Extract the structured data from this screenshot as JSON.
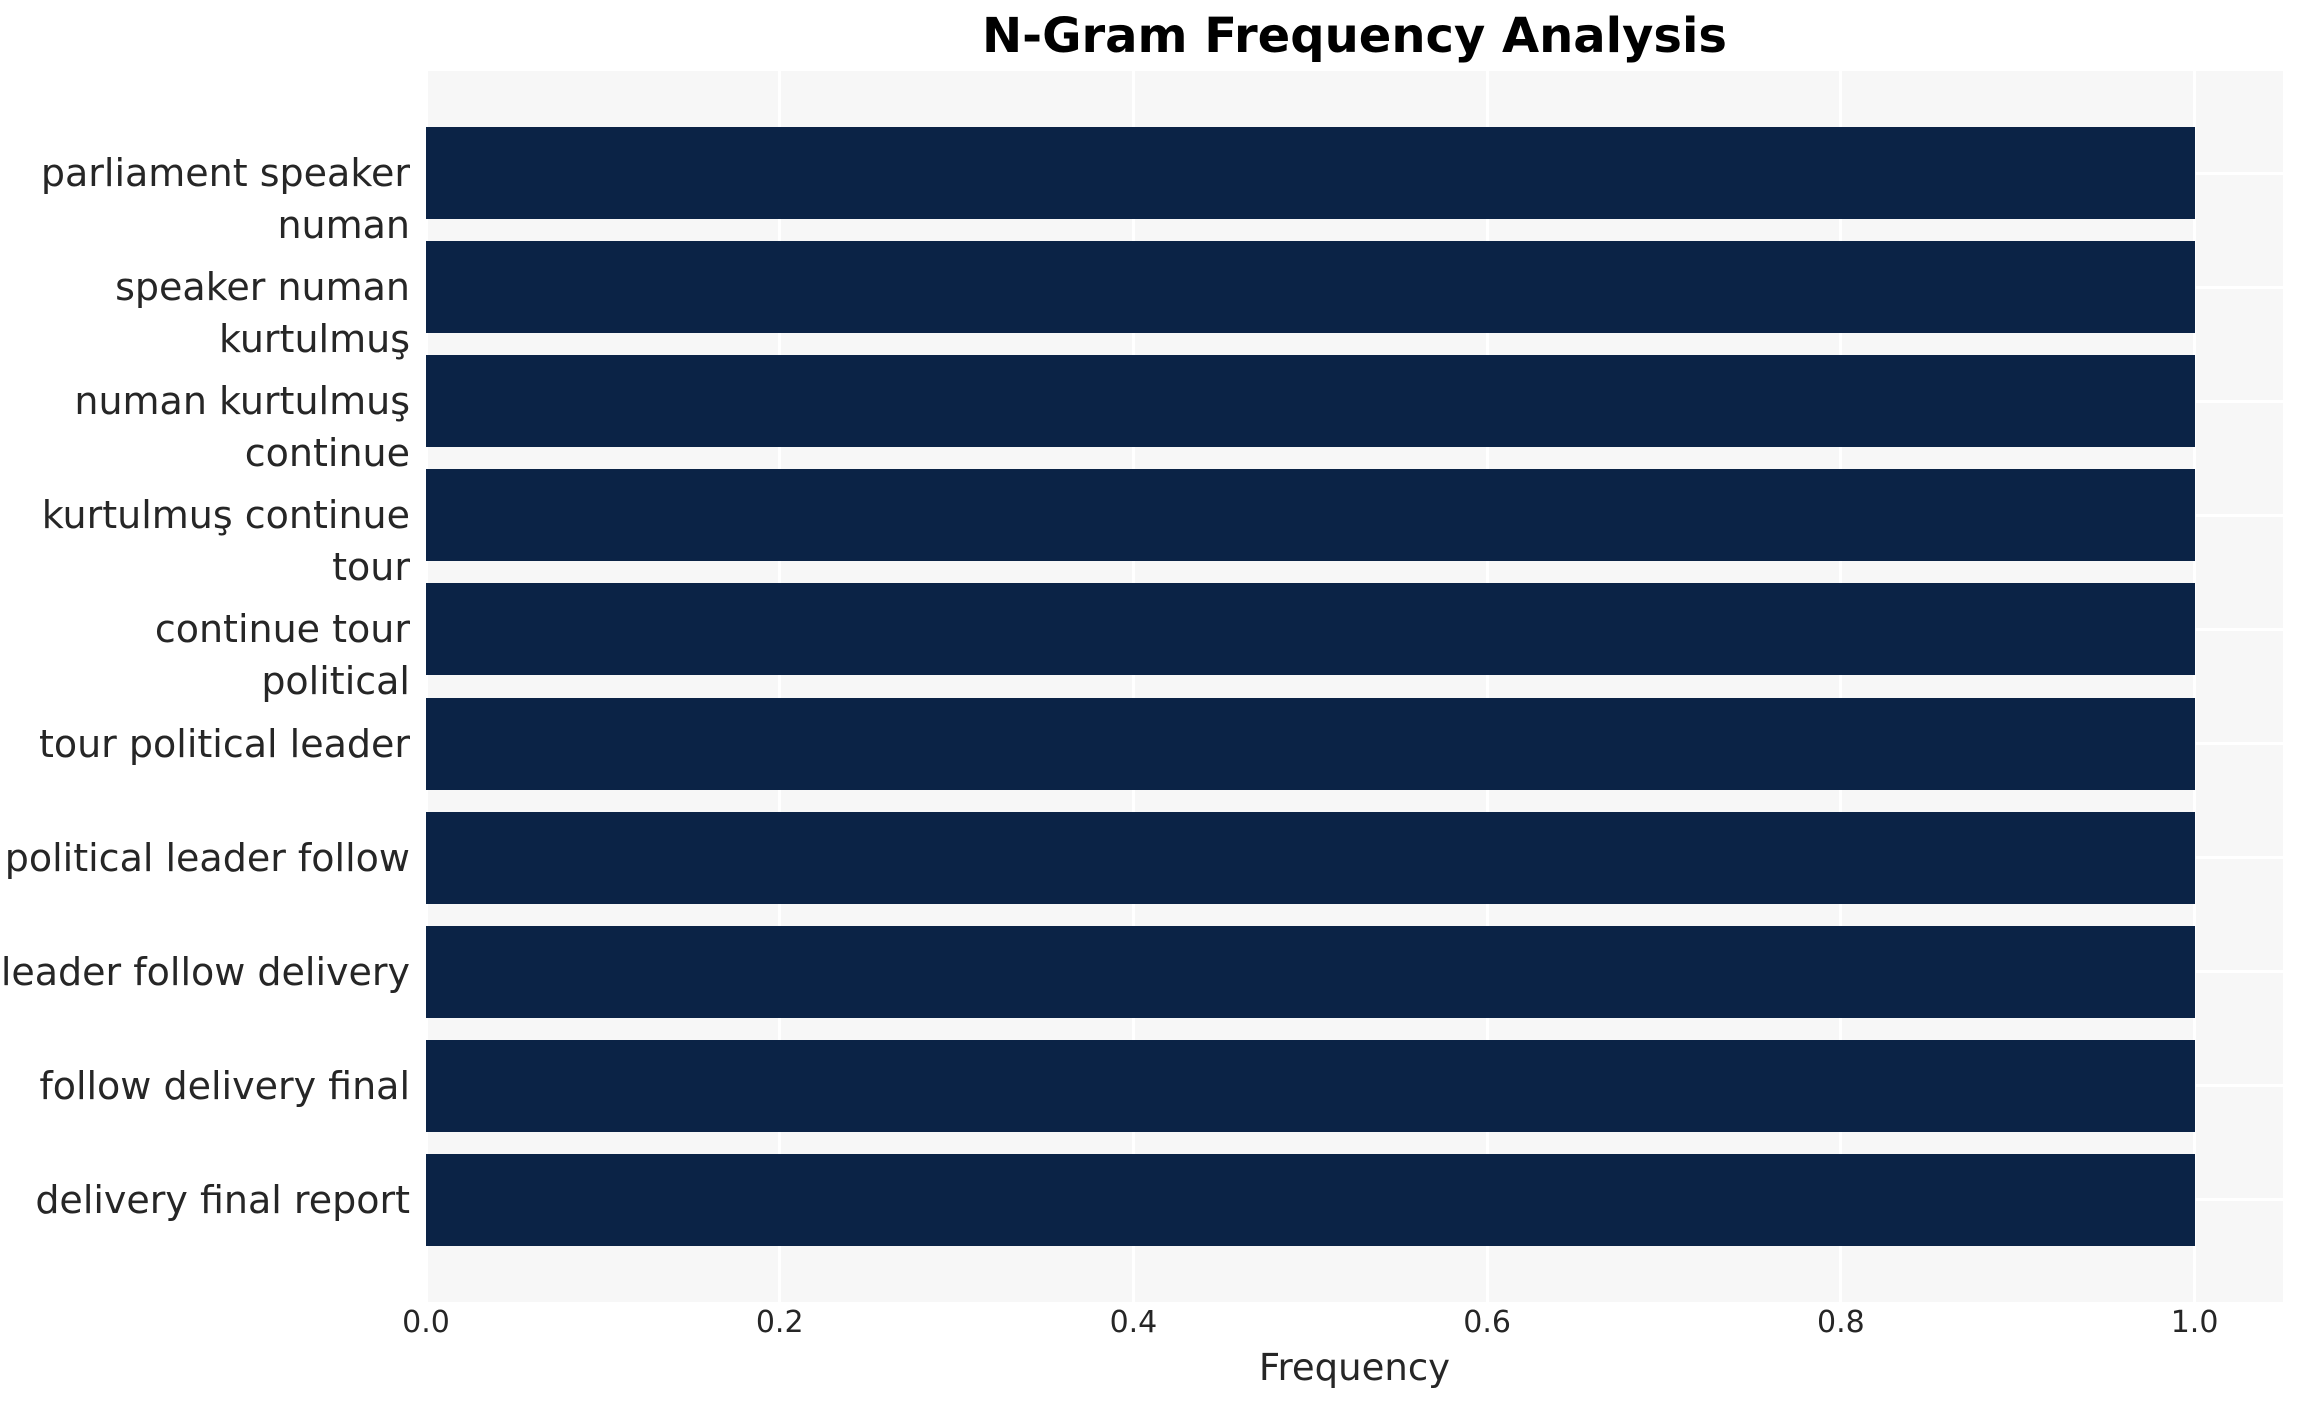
{
  "chart_data": {
    "type": "bar",
    "orientation": "horizontal",
    "title": "N-Gram Frequency Analysis",
    "xlabel": "Frequency",
    "ylabel": "",
    "categories": [
      "parliament speaker numan",
      "speaker numan kurtulmuş",
      "numan kurtulmuş continue",
      "kurtulmuş continue tour",
      "continue tour political",
      "tour political leader",
      "political leader follow",
      "leader follow delivery",
      "follow delivery final",
      "delivery final report"
    ],
    "values": [
      1.0,
      1.0,
      1.0,
      1.0,
      1.0,
      1.0,
      1.0,
      1.0,
      1.0,
      1.0
    ],
    "xlim": [
      0.0,
      1.05
    ],
    "xticks": [
      0.0,
      0.2,
      0.4,
      0.6,
      0.8,
      1.0
    ],
    "xtick_labels": [
      "0.0",
      "0.2",
      "0.4",
      "0.6",
      "0.8",
      "1.0"
    ],
    "grid": true,
    "legend_position": "none",
    "colors": {
      "bar": "#0b2346",
      "plot_background": "#f7f7f7",
      "grid": "#ffffff",
      "figure_background": "#ffffff",
      "tick_text": "#262626",
      "title_text": "#000000"
    }
  }
}
